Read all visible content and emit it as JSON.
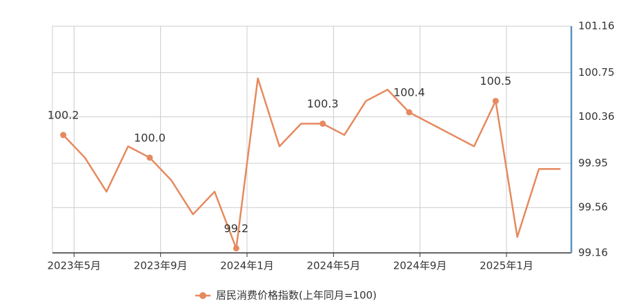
{
  "chart_data": {
    "type": "line",
    "categories": [
      "2023年5月",
      null,
      null,
      null,
      "2023年9月",
      null,
      null,
      null,
      "2024年1月",
      null,
      null,
      null,
      "2024年5月",
      null,
      null,
      null,
      "2024年9月",
      null,
      null,
      null,
      "2025年1月",
      null,
      null,
      null
    ],
    "series": [
      {
        "name": "居民消费价格指数(上年同月=100)",
        "color": "#e6895e",
        "values": [
          100.2,
          100.0,
          99.7,
          100.1,
          100.0,
          99.8,
          99.5,
          99.7,
          99.2,
          100.7,
          100.1,
          100.3,
          100.3,
          100.2,
          100.5,
          100.6,
          100.4,
          100.3,
          100.2,
          100.1,
          100.5,
          99.3,
          99.9,
          99.9
        ],
        "value_labels": [
          "100.2",
          null,
          null,
          null,
          "100.0",
          null,
          null,
          null,
          "99.2",
          null,
          null,
          null,
          "100.3",
          null,
          null,
          null,
          "100.4",
          null,
          null,
          null,
          "100.5",
          null,
          null,
          null
        ]
      }
    ],
    "ylim": [
      99.16,
      101.16
    ],
    "yticks": [
      99.16,
      99.56,
      99.95,
      100.36,
      100.75,
      101.16
    ],
    "y_axis_side": "right",
    "grid": true,
    "legend": "bottom"
  }
}
